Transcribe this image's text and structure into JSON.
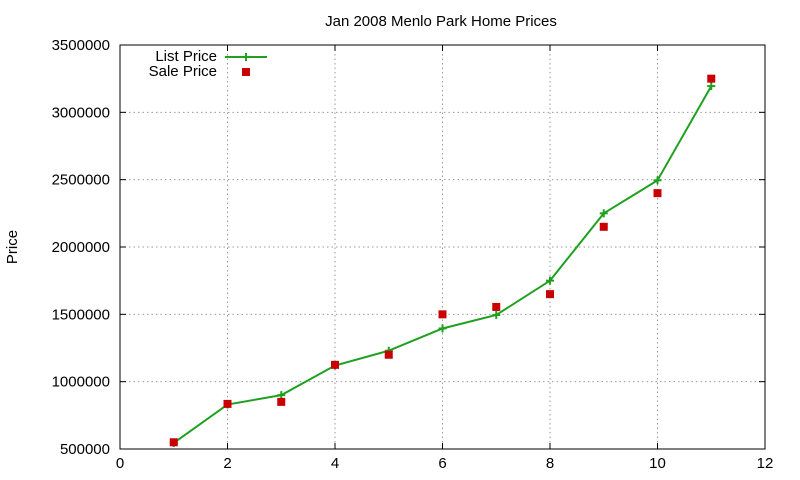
{
  "chart_data": {
    "type": "line",
    "title": "Jan 2008 Menlo Park Home Prices",
    "xlabel": "",
    "ylabel": "Price",
    "xlim": [
      0,
      12
    ],
    "ylim": [
      500000,
      3500000
    ],
    "x_ticks": [
      0,
      2,
      4,
      6,
      8,
      10,
      12
    ],
    "y_ticks": [
      500000,
      1000000,
      1500000,
      2000000,
      2500000,
      3000000,
      3500000
    ],
    "grid": true,
    "legend_position": "top-left",
    "series": [
      {
        "name": "List Price",
        "style": "line+cross",
        "color": "#1fa01f",
        "points": [
          [
            1,
            545000
          ],
          [
            2,
            830000
          ],
          [
            3,
            900000
          ],
          [
            4,
            1120000
          ],
          [
            5,
            1230000
          ],
          [
            6,
            1395000
          ],
          [
            7,
            1495000
          ],
          [
            8,
            1750000
          ],
          [
            9,
            2250000
          ],
          [
            10,
            2495000
          ],
          [
            11,
            3195000
          ]
        ]
      },
      {
        "name": "Sale Price",
        "style": "square",
        "color": "#c80000",
        "points": [
          [
            1,
            550000
          ],
          [
            2,
            835000
          ],
          [
            3,
            850000
          ],
          [
            4,
            1125000
          ],
          [
            5,
            1200000
          ],
          [
            6,
            1500000
          ],
          [
            7,
            1555000
          ],
          [
            8,
            1650000
          ],
          [
            9,
            2150000
          ],
          [
            10,
            2400000
          ],
          [
            11,
            3250000
          ]
        ]
      }
    ]
  }
}
